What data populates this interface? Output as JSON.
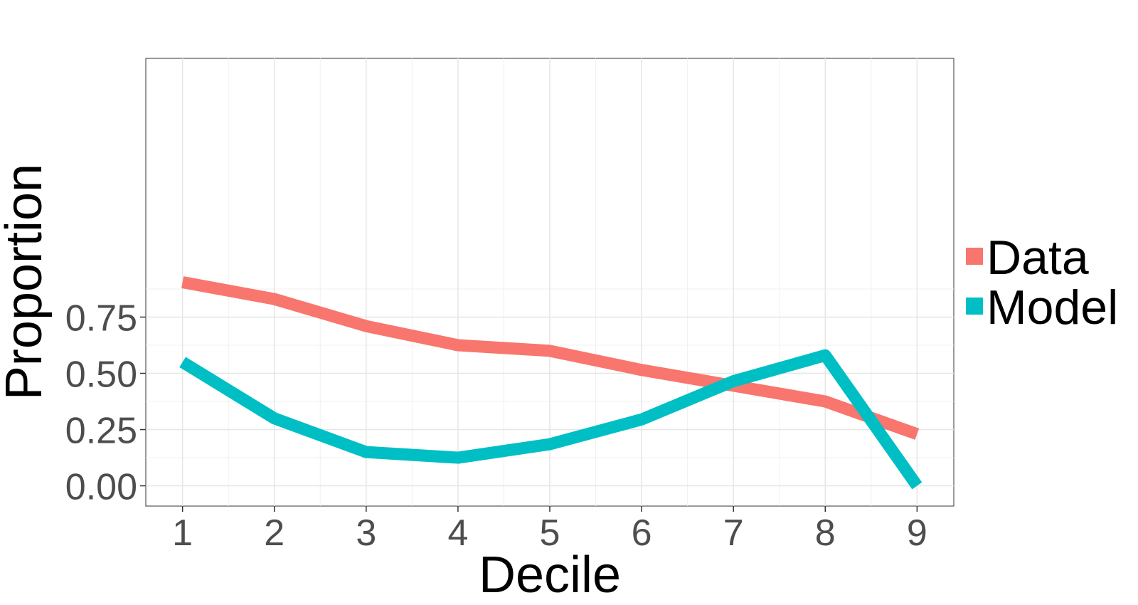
{
  "chart_data": {
    "type": "line",
    "xlabel": "Decile",
    "ylabel": "Proportion",
    "x": [
      1,
      2,
      3,
      4,
      5,
      6,
      7,
      8,
      9
    ],
    "xlim": [
      0.6,
      9.4
    ],
    "ylim": [
      -0.09,
      1.9
    ],
    "x_ticks": [
      "1",
      "2",
      "3",
      "4",
      "5",
      "6",
      "7",
      "8",
      "9"
    ],
    "y_ticks": [
      0,
      0.25,
      0.5,
      0.75
    ],
    "y_tick_labels": [
      "0.00",
      "0.25",
      "0.50",
      "0.75"
    ],
    "grid": true,
    "legend_position": "right",
    "series": [
      {
        "name": "Data",
        "color": "#F8766D",
        "values": [
          0.905,
          0.83,
          0.71,
          0.625,
          0.6,
          0.515,
          0.445,
          0.375,
          0.23
        ]
      },
      {
        "name": "Model",
        "color": "#00BFC4",
        "values": [
          0.55,
          0.3,
          0.15,
          0.125,
          0.185,
          0.295,
          0.465,
          0.58,
          0.0
        ]
      }
    ]
  }
}
